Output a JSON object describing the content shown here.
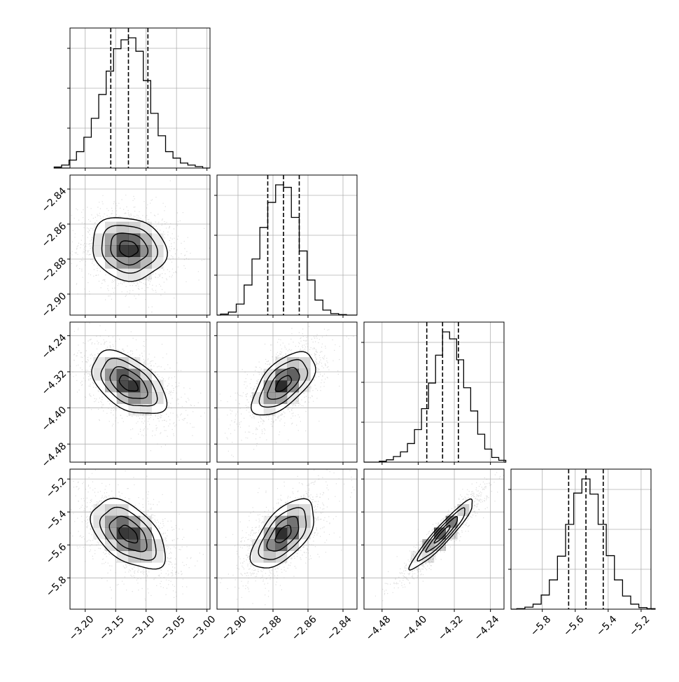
{
  "chart_data": {
    "type": "corner",
    "title": "",
    "grid": true,
    "parameters": [
      {
        "range": [
          -3.225,
          -2.995
        ],
        "ticks": [
          "−3.20",
          "−3.15",
          "−3.10",
          "−3.05",
          "−3.00"
        ],
        "tick_values": [
          -3.2,
          -3.15,
          -3.1,
          -3.05,
          -3.0
        ],
        "quantiles": [
          -3.158,
          -3.129,
          -3.097
        ],
        "mode": [
          -3.129,
          -2.873
        ],
        "histogram": [
          2,
          6,
          16,
          33,
          62,
          100,
          148,
          195,
          240,
          258,
          262,
          235,
          176,
          110,
          65,
          33,
          20,
          10,
          6,
          3
        ]
      },
      {
        "range": [
          -2.912,
          -2.832
        ],
        "ticks": [
          "−2.90",
          "−2.88",
          "−2.86",
          "−2.84"
        ],
        "tick_values": [
          -2.9,
          -2.88,
          -2.86,
          -2.84
        ],
        "quantiles": [
          -2.883,
          -2.874,
          -2.865
        ],
        "histogram": [
          2,
          6,
          22,
          60,
          112,
          175,
          225,
          260,
          255,
          195,
          128,
          70,
          30,
          10,
          3,
          1
        ]
      },
      {
        "range": [
          -4.52,
          -4.21
        ],
        "ticks": [
          "−4.48",
          "−4.40",
          "−4.32",
          "−4.24"
        ],
        "tick_values": [
          -4.48,
          -4.4,
          -4.32,
          -4.24
        ],
        "quantiles": [
          -4.381,
          -4.346,
          -4.311
        ],
        "histogram": [
          2,
          5,
          12,
          22,
          40,
          70,
          115,
          170,
          230,
          280,
          265,
          220,
          160,
          110,
          60,
          28,
          10,
          4
        ]
      },
      {
        "range": [
          -5.99,
          -5.14
        ],
        "ticks": [
          "−5.8",
          "−5.6",
          "−5.4",
          "−5.2"
        ],
        "tick_values": [
          -5.8,
          -5.6,
          -5.4,
          -5.2
        ],
        "quantiles": [
          -5.64,
          -5.535,
          -5.43
        ],
        "histogram": [
          1,
          4,
          10,
          28,
          58,
          105,
          168,
          230,
          258,
          228,
          168,
          106,
          58,
          26,
          10,
          3,
          1
        ]
      }
    ],
    "correlations": [
      {
        "row": 1,
        "col": 0,
        "r": -0.12
      },
      {
        "row": 2,
        "col": 0,
        "r": -0.5
      },
      {
        "row": 2,
        "col": 1,
        "r": 0.6
      },
      {
        "row": 3,
        "col": 0,
        "r": -0.5
      },
      {
        "row": 3,
        "col": 1,
        "r": 0.6
      },
      {
        "row": 3,
        "col": 2,
        "r": 0.94
      }
    ],
    "contour_levels_sigma": [
      0.5,
      1.0,
      1.5,
      2.0
    ],
    "colors": {
      "line": "#000000",
      "scatter": "#9e9e9e",
      "grid": "#b0b0b0",
      "density": "#000000"
    }
  }
}
